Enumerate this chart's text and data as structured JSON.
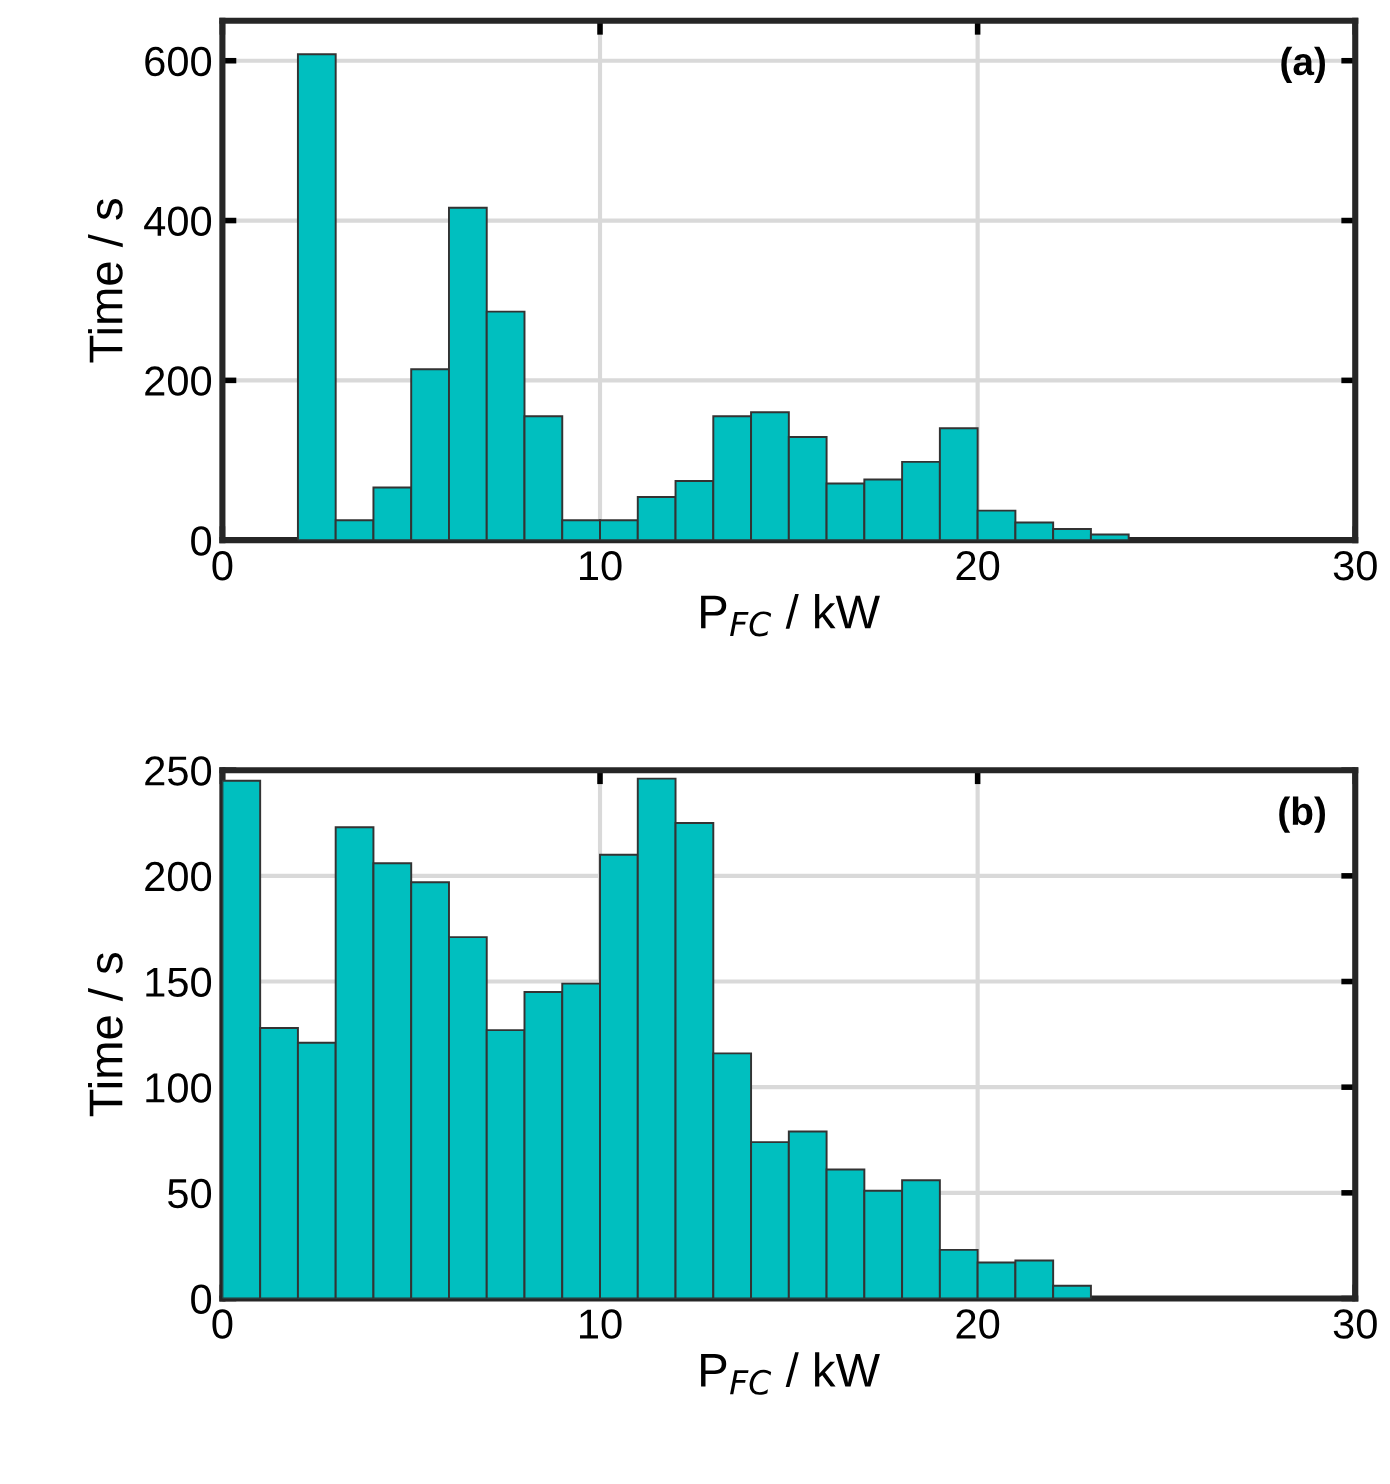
{
  "chart_data": [
    {
      "type": "histogram",
      "bins": [
        2,
        3,
        4,
        5,
        6,
        7,
        8,
        9,
        10,
        11,
        12,
        13,
        14,
        15,
        16,
        17,
        18,
        19,
        20,
        21,
        22,
        23,
        24
      ],
      "values": [
        608,
        25,
        66,
        214,
        416,
        286,
        155,
        25,
        25,
        54,
        74,
        155,
        160,
        129,
        71,
        76,
        98,
        140,
        37,
        22,
        14,
        7
      ],
      "color": "#00bfbf",
      "xlabel": "P$_{FC}$ / kW",
      "ylabel": "Time / s",
      "annotations": [
        "(a)"
      ],
      "xlim": [
        0,
        30
      ],
      "xticks": [
        0,
        10,
        20,
        30
      ],
      "ylim": [
        0,
        650
      ],
      "yticks": [
        0,
        200,
        400,
        600
      ],
      "grid": true
    },
    {
      "type": "histogram",
      "bins": [
        0,
        1,
        2,
        3,
        4,
        5,
        6,
        7,
        8,
        9,
        10,
        11,
        12,
        13,
        14,
        15,
        16,
        17,
        18,
        19,
        20,
        21,
        22,
        23
      ],
      "values": [
        245,
        128,
        121,
        223,
        206,
        197,
        171,
        127,
        145,
        149,
        210,
        246,
        225,
        116,
        74,
        79,
        61,
        51,
        56,
        23,
        17,
        18,
        6
      ],
      "color": "#00bfbf",
      "xlabel": "P$_{FC}$ / kW",
      "ylabel": "Time / s",
      "annotations": [
        "(b)"
      ],
      "xlim": [
        0,
        30
      ],
      "xticks": [
        0,
        10,
        20,
        30
      ],
      "ylim": [
        0,
        250
      ],
      "yticks": [
        0,
        50,
        100,
        150,
        200,
        250
      ],
      "grid": true
    }
  ]
}
